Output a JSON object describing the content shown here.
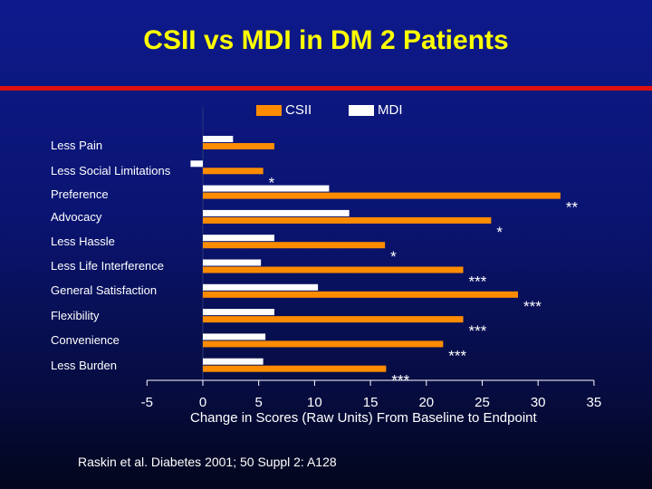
{
  "chart_data": {
    "type": "bar",
    "title": "CSII vs MDI in DM 2 Patients",
    "xlabel": "Change in Scores (Raw Units) From Baseline to Endpoint",
    "xlim": [
      -5,
      35
    ],
    "xticks": [
      "-5",
      "0",
      "5",
      "10",
      "15",
      "20",
      "25",
      "30",
      "35"
    ],
    "categories": [
      "Less Pain",
      "Less Social Limitations",
      "Preference",
      "Advocacy",
      "Less Hassle",
      "Less Life Interference",
      "General Satisfaction",
      "Flexibility",
      "Convenience",
      "Less Burden"
    ],
    "series": [
      {
        "name": "MDI",
        "color": "#ffffff",
        "values": [
          2.7,
          -1.1,
          11.3,
          13.1,
          6.4,
          5.2,
          10.3,
          6.4,
          5.6,
          5.4
        ]
      },
      {
        "name": "CSII",
        "color": "#ff8c00",
        "values": [
          6.4,
          5.4,
          32.0,
          25.8,
          16.3,
          23.3,
          28.2,
          23.3,
          21.5,
          16.4
        ]
      }
    ],
    "significance": [
      "",
      "*",
      "**",
      "*",
      "*",
      "***",
      "***",
      "***",
      "***",
      "***"
    ],
    "legend_placement": "top"
  },
  "source": "Raskin et al. Diabetes 2001; 50 Suppl 2: A128"
}
